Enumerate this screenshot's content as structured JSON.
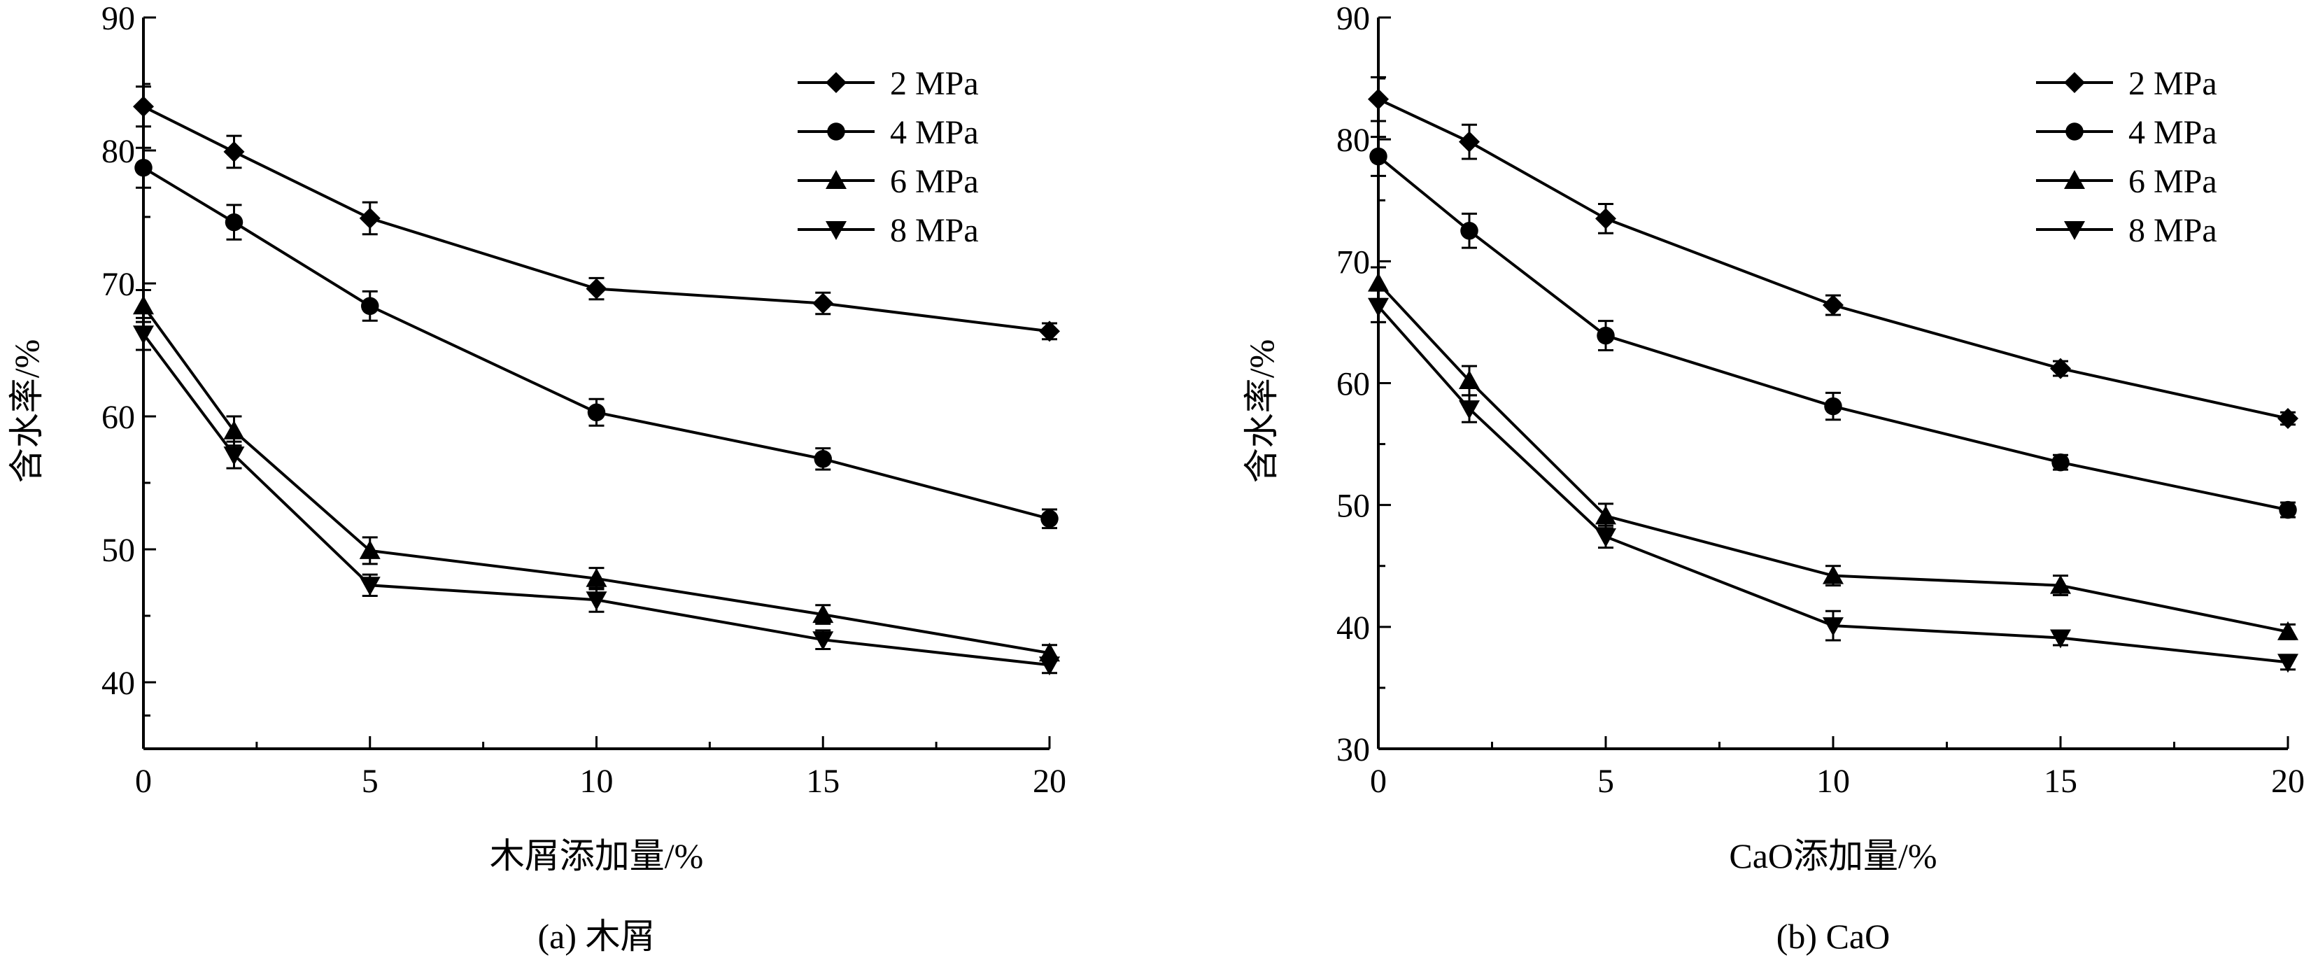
{
  "chart_data": [
    {
      "type": "line",
      "panel_caption": "(a) 木屑",
      "xlabel": "木屑添加量/%",
      "ylabel": "含水率/%",
      "xlim": [
        0,
        20
      ],
      "ylim": [
        35,
        90
      ],
      "x_ticks": [
        "0",
        "5",
        "10",
        "15",
        "20"
      ],
      "y_ticks": [
        "40",
        "50",
        "60",
        "70",
        "80",
        "90"
      ],
      "legend_position": "top-right",
      "x": [
        0,
        2,
        5,
        10,
        15,
        20
      ],
      "series": [
        {
          "name": "2 MPa",
          "marker": "diamond",
          "values": [
            83.3,
            79.9,
            74.9,
            69.6,
            68.5,
            66.4
          ],
          "errors": [
            1.5,
            1.2,
            1.2,
            0.8,
            0.8,
            0.6
          ]
        },
        {
          "name": "4 MPa",
          "marker": "circle",
          "values": [
            78.7,
            74.6,
            68.3,
            60.3,
            56.8,
            52.3
          ],
          "errors": [
            1.5,
            1.3,
            1.1,
            1.0,
            0.8,
            0.7
          ]
        },
        {
          "name": "6 MPa",
          "marker": "triangle-up",
          "values": [
            68.3,
            58.9,
            49.9,
            47.8,
            45.1,
            42.2
          ],
          "errors": [
            1.2,
            1.1,
            1.0,
            0.8,
            0.7,
            0.6
          ]
        },
        {
          "name": "8 MPa",
          "marker": "triangle-down",
          "values": [
            66.2,
            57.1,
            47.3,
            46.2,
            43.2,
            41.3
          ],
          "errors": [
            1.2,
            1.0,
            0.8,
            0.9,
            0.7,
            0.6
          ]
        }
      ]
    },
    {
      "type": "line",
      "panel_caption": "(b) CaO",
      "xlabel": "CaO添加量/%",
      "ylabel": "含水率/%",
      "xlim": [
        0,
        20
      ],
      "ylim": [
        30,
        90
      ],
      "x_ticks": [
        "0",
        "5",
        "10",
        "15",
        "20"
      ],
      "y_ticks": [
        "30",
        "40",
        "50",
        "60",
        "70",
        "80",
        "90"
      ],
      "legend_position": "top-right",
      "x": [
        0,
        2,
        5,
        10,
        15,
        20
      ],
      "series": [
        {
          "name": "2 MPa",
          "marker": "diamond",
          "values": [
            83.3,
            79.8,
            73.5,
            66.4,
            61.2,
            57.1
          ],
          "errors": [
            1.8,
            1.4,
            1.2,
            0.8,
            0.6,
            0.5
          ]
        },
        {
          "name": "4 MPa",
          "marker": "circle",
          "values": [
            78.6,
            72.5,
            63.9,
            58.1,
            53.5,
            49.6
          ],
          "errors": [
            1.6,
            1.4,
            1.2,
            1.1,
            0.6,
            0.6
          ]
        },
        {
          "name": "6 MPa",
          "marker": "triangle-up",
          "values": [
            68.2,
            60.2,
            49.1,
            44.2,
            43.4,
            39.6
          ],
          "errors": [
            1.3,
            1.2,
            1.0,
            0.8,
            0.8,
            0.6
          ]
        },
        {
          "name": "8 MPa",
          "marker": "triangle-down",
          "values": [
            66.3,
            57.9,
            47.4,
            40.1,
            39.1,
            37.1
          ],
          "errors": [
            1.3,
            1.1,
            0.9,
            1.2,
            0.6,
            0.6
          ]
        }
      ]
    }
  ]
}
